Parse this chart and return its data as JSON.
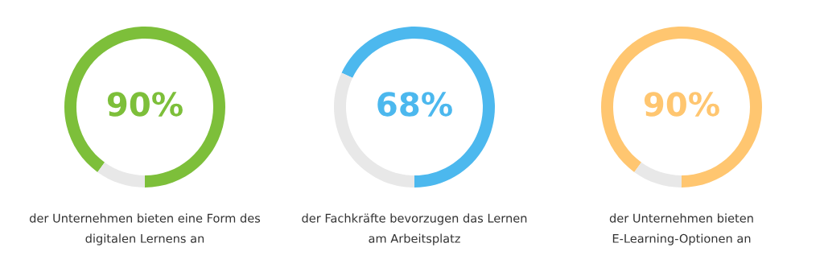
{
  "chart_data": [
    {
      "type": "donut",
      "categories": [
        null,
        null
      ],
      "values": [
        90,
        10
      ],
      "colors": [
        "#7dbf3a",
        "#e8e8e8"
      ],
      "value_labels": [
        "90%",
        null
      ],
      "annotations": [
        "der Unternehmen bieten eine Form des\ndigitalen Lernens an"
      ]
    },
    {
      "type": "donut",
      "categories": [
        null,
        null
      ],
      "values": [
        68,
        32
      ],
      "colors": [
        "#4cb8ee",
        "#e8e8e8"
      ],
      "value_labels": [
        "68%",
        null
      ],
      "annotations": [
        "der Fachkräfte bevorzugen das Lernen\nam Arbeitsplatz"
      ]
    },
    {
      "type": "donut",
      "categories": [
        null,
        null
      ],
      "values": [
        90,
        10
      ],
      "colors": [
        "#ffc670",
        "#e8e8e8"
      ],
      "value_labels": [
        "90%",
        null
      ],
      "annotations": [
        "der Unternehmen bieten\nE-Learning-Optionen an"
      ]
    }
  ]
}
